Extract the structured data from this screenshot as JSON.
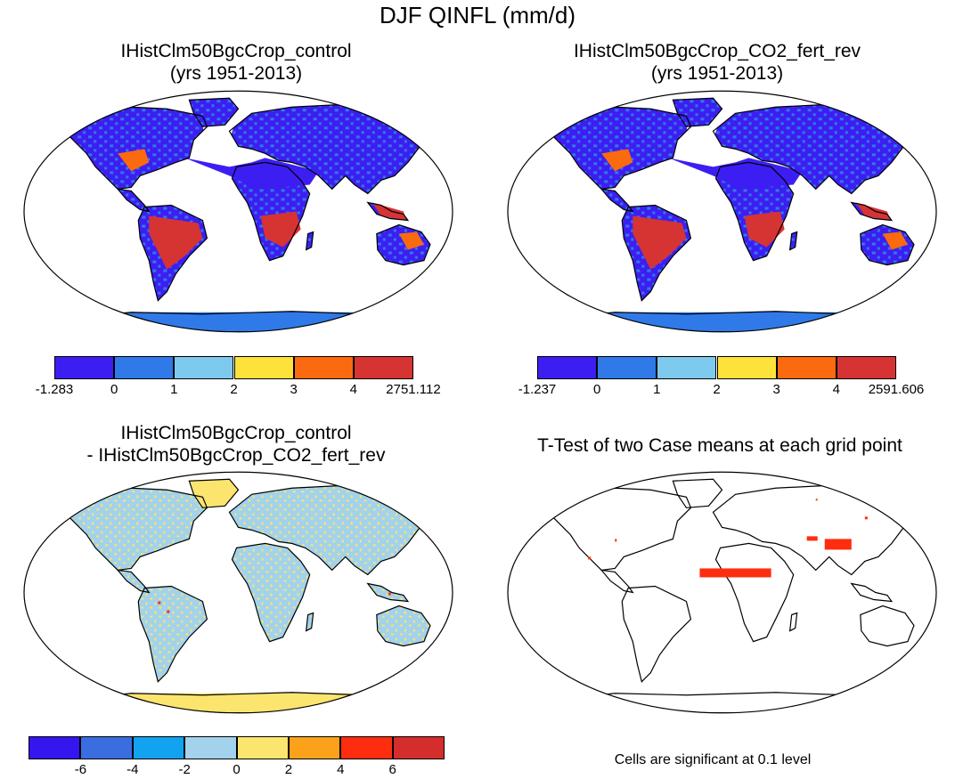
{
  "title": "DJF QINFL (mm/d)",
  "panels": [
    {
      "id": "p1",
      "title_line1": "IHistClm50BgcCrop_control",
      "title_line2": "(yrs 1951-2013)"
    },
    {
      "id": "p2",
      "title_line1": "IHistClm50BgcCrop_CO2_fert_rev",
      "title_line2": "(yrs 1951-2013)"
    },
    {
      "id": "p3",
      "title_line1": "IHistClm50BgcCrop_control",
      "title_line2": "- IHistClm50BgcCrop_CO2_fert_rev"
    },
    {
      "id": "p4",
      "title_line1": "T-Test of two Case means at each grid point",
      "title_line2": ""
    }
  ],
  "colorbars": {
    "top_left": {
      "colors": [
        "#3d1ef2",
        "#2f7ae8",
        "#7ec9ee",
        "#fde23b",
        "#fb6a0f",
        "#d63333"
      ],
      "labels": [
        "-1.283",
        "0",
        "1",
        "2",
        "3",
        "4",
        "2751.112"
      ]
    },
    "top_right": {
      "colors": [
        "#3d1ef2",
        "#2f7ae8",
        "#7ec9ee",
        "#fde23b",
        "#fb6a0f",
        "#d63333"
      ],
      "labels": [
        "-1.237",
        "0",
        "1",
        "2",
        "3",
        "4",
        "2591.606"
      ]
    },
    "difference": {
      "colors": [
        "#3516ef",
        "#3a6ee0",
        "#11a2f0",
        "#a2d2ec",
        "#fbe56e",
        "#fba21a",
        "#fe2d10",
        "#d52c2c"
      ],
      "labels": [
        "-6",
        "-4",
        "-2",
        "0",
        "2",
        "4",
        "6"
      ]
    }
  },
  "significance_note": "Cells are significant at 0.1 level"
}
